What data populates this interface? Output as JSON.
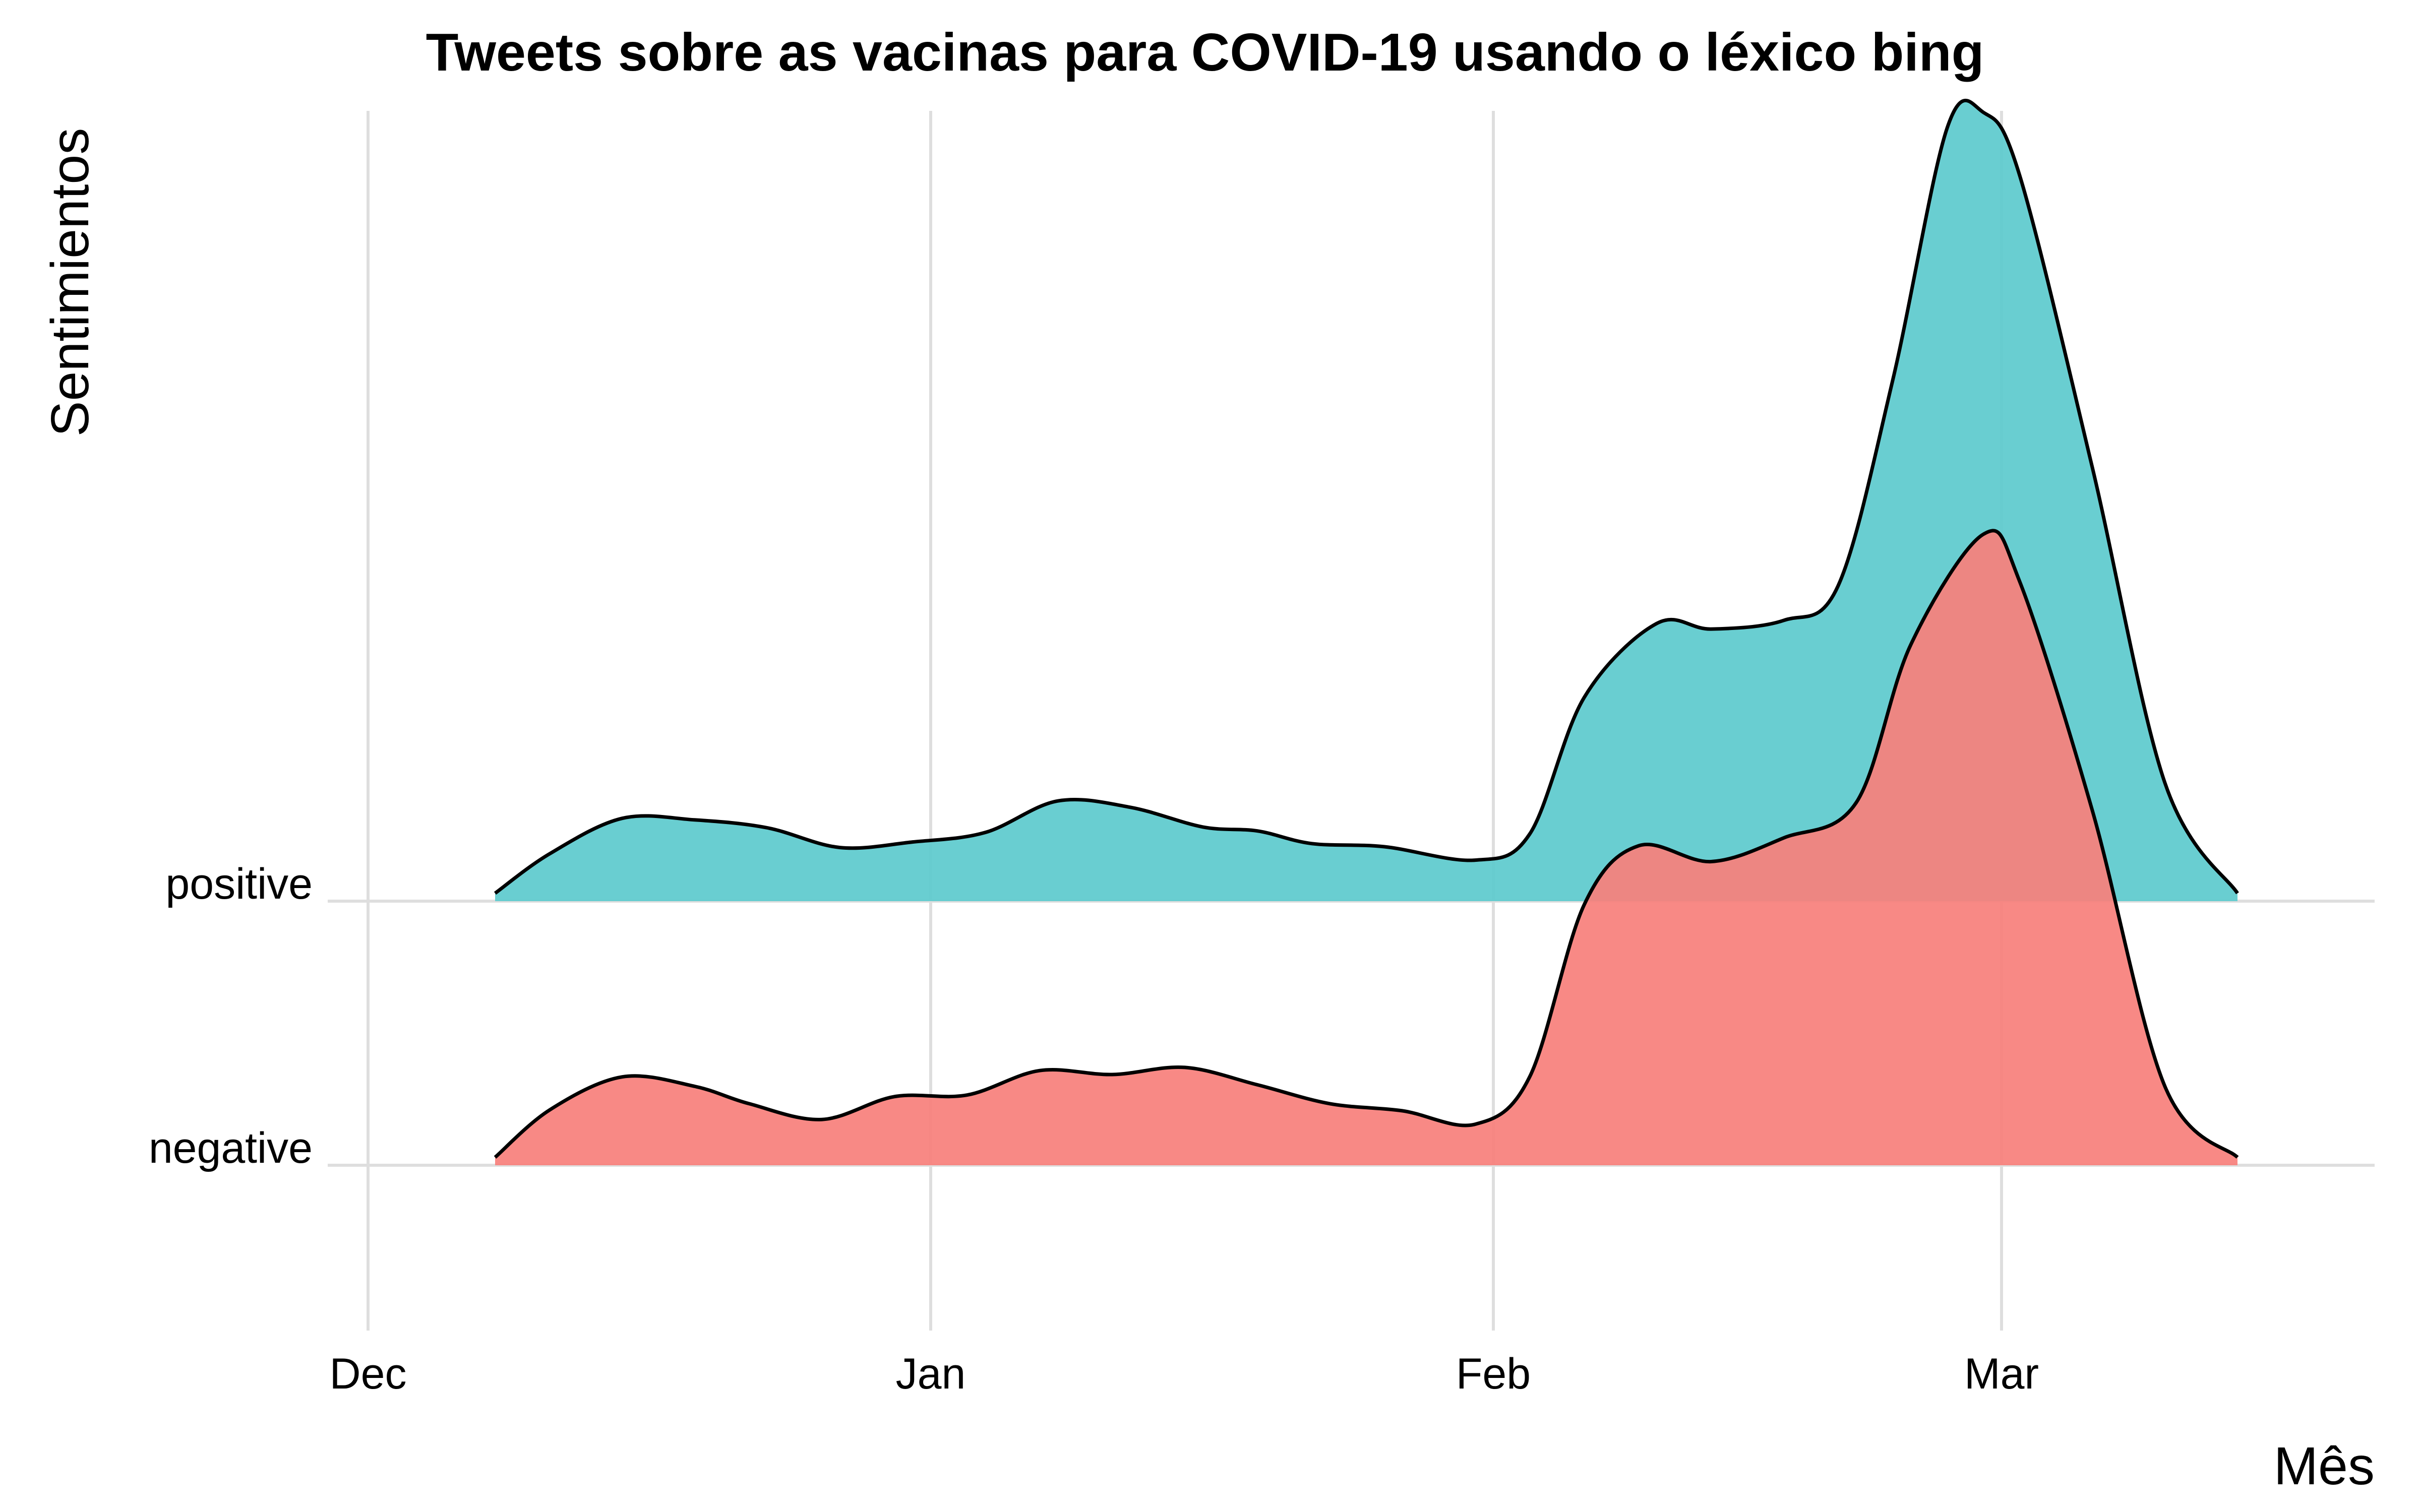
{
  "chart_data": {
    "type": "area",
    "subtype": "ridgeline-density",
    "title": "Tweets sobre as vacinas para COVID-19 usando o léxico bing",
    "xlabel": "Mês",
    "ylabel": "Sentimientos",
    "x_axis": {
      "ticks": [
        "Dec",
        "Jan",
        "Feb",
        "Mar"
      ],
      "tick_dates": [
        "2020-12-01",
        "2021-01-01",
        "2021-02-01",
        "2021-03-01"
      ]
    },
    "categories": [
      "negative",
      "positive"
    ],
    "density_scale_max": 1.0,
    "series": [
      {
        "name": "positive",
        "color": "#5ECACD",
        "points": [
          {
            "x": "2020-12-08",
            "y": 0.01
          },
          {
            "x": "2020-12-11",
            "y": 0.06
          },
          {
            "x": "2020-12-15",
            "y": 0.105
          },
          {
            "x": "2020-12-19",
            "y": 0.103
          },
          {
            "x": "2020-12-23",
            "y": 0.093
          },
          {
            "x": "2020-12-27",
            "y": 0.068
          },
          {
            "x": "2020-12-31",
            "y": 0.075
          },
          {
            "x": "2021-01-04",
            "y": 0.087
          },
          {
            "x": "2021-01-08",
            "y": 0.127
          },
          {
            "x": "2021-01-12",
            "y": 0.119
          },
          {
            "x": "2021-01-16",
            "y": 0.094
          },
          {
            "x": "2021-01-19",
            "y": 0.089
          },
          {
            "x": "2021-01-22",
            "y": 0.073
          },
          {
            "x": "2021-01-26",
            "y": 0.069
          },
          {
            "x": "2021-01-31",
            "y": 0.052
          },
          {
            "x": "2021-02-03",
            "y": 0.085
          },
          {
            "x": "2021-02-06",
            "y": 0.258
          },
          {
            "x": "2021-02-10",
            "y": 0.352
          },
          {
            "x": "2021-02-13",
            "y": 0.345
          },
          {
            "x": "2021-02-17",
            "y": 0.356
          },
          {
            "x": "2021-02-20",
            "y": 0.4
          },
          {
            "x": "2021-02-23",
            "y": 0.66
          },
          {
            "x": "2021-02-26",
            "y": 0.98
          },
          {
            "x": "2021-02-28",
            "y": 1.0
          },
          {
            "x": "2021-03-02",
            "y": 0.92
          },
          {
            "x": "2021-03-06",
            "y": 0.55
          },
          {
            "x": "2021-03-10",
            "y": 0.15
          },
          {
            "x": "2021-03-14",
            "y": 0.01
          }
        ]
      },
      {
        "name": "negative",
        "color": "#F8807C",
        "points": [
          {
            "x": "2020-12-08",
            "y": 0.01
          },
          {
            "x": "2020-12-11",
            "y": 0.07
          },
          {
            "x": "2020-12-15",
            "y": 0.112
          },
          {
            "x": "2020-12-19",
            "y": 0.1
          },
          {
            "x": "2020-12-22",
            "y": 0.078
          },
          {
            "x": "2020-12-26",
            "y": 0.058
          },
          {
            "x": "2020-12-30",
            "y": 0.087
          },
          {
            "x": "2021-01-03",
            "y": 0.089
          },
          {
            "x": "2021-01-07",
            "y": 0.12
          },
          {
            "x": "2021-01-11",
            "y": 0.115
          },
          {
            "x": "2021-01-15",
            "y": 0.124
          },
          {
            "x": "2021-01-19",
            "y": 0.102
          },
          {
            "x": "2021-01-23",
            "y": 0.078
          },
          {
            "x": "2021-01-27",
            "y": 0.069
          },
          {
            "x": "2021-01-31",
            "y": 0.052
          },
          {
            "x": "2021-02-03",
            "y": 0.112
          },
          {
            "x": "2021-02-06",
            "y": 0.33
          },
          {
            "x": "2021-02-09",
            "y": 0.405
          },
          {
            "x": "2021-02-13",
            "y": 0.385
          },
          {
            "x": "2021-02-17",
            "y": 0.415
          },
          {
            "x": "2021-02-21",
            "y": 0.46
          },
          {
            "x": "2021-02-24",
            "y": 0.66
          },
          {
            "x": "2021-02-28",
            "y": 0.8
          },
          {
            "x": "2021-03-02",
            "y": 0.74
          },
          {
            "x": "2021-03-06",
            "y": 0.45
          },
          {
            "x": "2021-03-10",
            "y": 0.1
          },
          {
            "x": "2021-03-14",
            "y": 0.01
          }
        ]
      }
    ],
    "grid": true,
    "legend": "none"
  }
}
